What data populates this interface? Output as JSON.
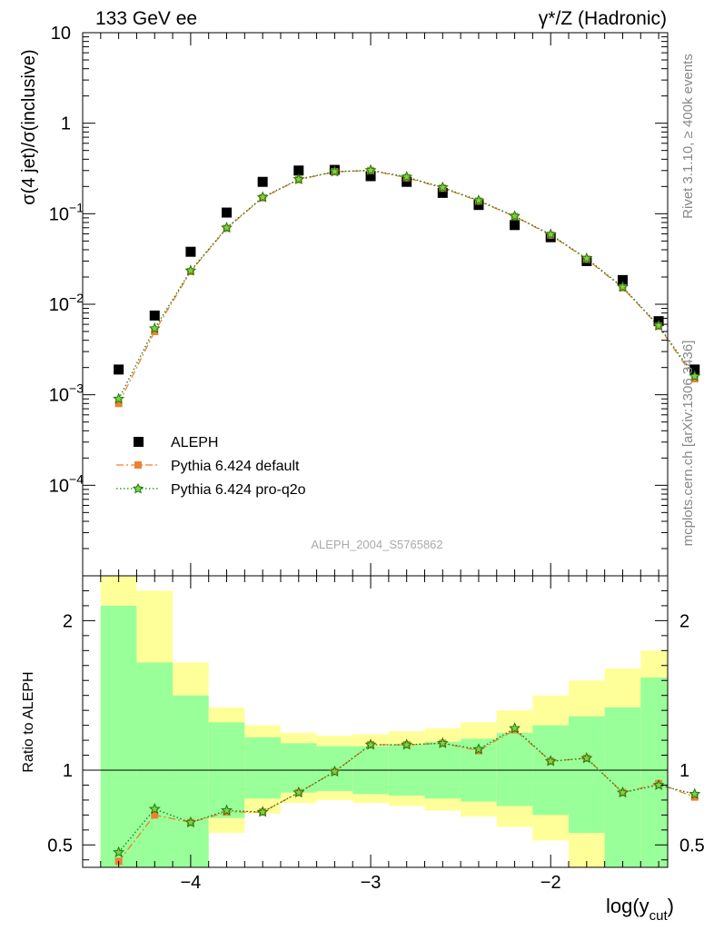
{
  "header": {
    "left_label": "133 GeV ee",
    "right_label": "γ*/Z (Hadronic)"
  },
  "side_labels": {
    "rivet": "Rivet 3.1.10, ≥ 400k events",
    "mcplots": "mcplots.cern.ch [arXiv:1306.3436]"
  },
  "analysis_id": "ALEPH_2004_S5765862",
  "colors": {
    "data": "#000000",
    "default": "#f08030",
    "proq2o": "#108010",
    "band_inner": "#99ff99",
    "band_outer": "#ffff99"
  },
  "chart_data": [
    {
      "type": "scatter",
      "panel": "main",
      "ylabel": "σ(4 jet)/σ(inclusive)",
      "yscale": "log",
      "ylim": [
        1e-05,
        10
      ],
      "xlim": [
        -4.6,
        -1.35
      ],
      "ytick_labels": [
        "10",
        "1",
        "10−1",
        "10−2",
        "10−3",
        "10−4"
      ],
      "legend_position": "lower-left",
      "x": [
        -4.4,
        -4.2,
        -4.0,
        -3.8,
        -3.6,
        -3.4,
        -3.2,
        -3.0,
        -2.8,
        -2.6,
        -2.4,
        -2.2,
        -2.0,
        -1.8,
        -1.6,
        -1.4,
        -1.2
      ],
      "series": [
        {
          "name": "ALEPH",
          "marker": "square",
          "values": [
            0.0019,
            0.0075,
            0.038,
            0.103,
            0.225,
            0.3,
            0.305,
            0.26,
            0.225,
            0.17,
            0.125,
            0.075,
            0.055,
            0.03,
            0.0185,
            0.0065,
            0.0019
          ]
        },
        {
          "name": "Pythia 6.424 default",
          "marker": "square-small",
          "linestyle": "dashdot",
          "values": [
            0.0008,
            0.005,
            0.023,
            0.069,
            0.15,
            0.238,
            0.29,
            0.3,
            0.25,
            0.192,
            0.138,
            0.093,
            0.058,
            0.0315,
            0.0152,
            0.0057,
            0.0015
          ]
        },
        {
          "name": "Pythia 6.424 pro-q2o",
          "marker": "star",
          "linestyle": "dotted",
          "values": [
            0.0009,
            0.0054,
            0.0235,
            0.07,
            0.152,
            0.24,
            0.292,
            0.302,
            0.255,
            0.195,
            0.14,
            0.094,
            0.059,
            0.032,
            0.0155,
            0.0058,
            0.0016
          ]
        }
      ]
    },
    {
      "type": "line",
      "panel": "ratio",
      "ylabel": "Ratio to ALEPH",
      "xlabel": "log(y",
      "xlabel_sub": "cut",
      "xlabel_close": ")",
      "ylim": [
        0.35,
        2.3
      ],
      "xlim": [
        -4.6,
        -1.35
      ],
      "ytick_labels": [
        "2",
        "1",
        "0.5"
      ],
      "xtick_labels": [
        "−4",
        "−3",
        "−2"
      ],
      "x": [
        -4.4,
        -4.2,
        -4.0,
        -3.8,
        -3.6,
        -3.4,
        -3.2,
        -3.0,
        -2.8,
        -2.6,
        -2.4,
        -2.2,
        -2.0,
        -1.8,
        -1.6,
        -1.4,
        -1.2
      ],
      "bands": {
        "x_edges": [
          -4.5,
          -4.3,
          -4.1,
          -3.9,
          -3.7,
          -3.5,
          -3.3,
          -3.1,
          -2.9,
          -2.7,
          -2.5,
          -2.3,
          -2.1,
          -1.9,
          -1.7,
          -1.5,
          -1.3,
          -1.1
        ],
        "inner_low": [
          0.0,
          0.0,
          0.0,
          0.68,
          0.81,
          0.85,
          0.86,
          0.84,
          0.83,
          0.81,
          0.79,
          0.76,
          0.7,
          0.58,
          0.0,
          0.0,
          0.0
        ],
        "inner_high": [
          2.1,
          1.72,
          1.5,
          1.32,
          1.22,
          1.18,
          1.16,
          1.16,
          1.17,
          1.19,
          1.21,
          1.25,
          1.3,
          1.36,
          1.42,
          1.62,
          2.5
        ],
        "outer_low": [
          0.0,
          0.0,
          0.0,
          0.58,
          0.71,
          0.78,
          0.8,
          0.78,
          0.76,
          0.73,
          0.69,
          0.62,
          0.53,
          0.0,
          0.0,
          0.0,
          0.0
        ],
        "outer_high": [
          2.5,
          2.2,
          1.72,
          1.42,
          1.3,
          1.25,
          1.23,
          1.24,
          1.26,
          1.28,
          1.32,
          1.4,
          1.5,
          1.6,
          1.68,
          1.8,
          2.5
        ]
      },
      "series": [
        {
          "name": "Pythia 6.424 default",
          "values": [
            0.39,
            0.7,
            0.65,
            0.72,
            0.72,
            0.85,
            0.99,
            1.17,
            1.17,
            1.18,
            1.13,
            1.27,
            1.06,
            1.08,
            0.85,
            0.91,
            0.82
          ]
        },
        {
          "name": "Pythia 6.424 pro-q2o",
          "values": [
            0.45,
            0.74,
            0.65,
            0.73,
            0.72,
            0.85,
            0.99,
            1.17,
            1.17,
            1.18,
            1.14,
            1.28,
            1.06,
            1.08,
            0.85,
            0.9,
            0.84
          ]
        }
      ]
    }
  ]
}
